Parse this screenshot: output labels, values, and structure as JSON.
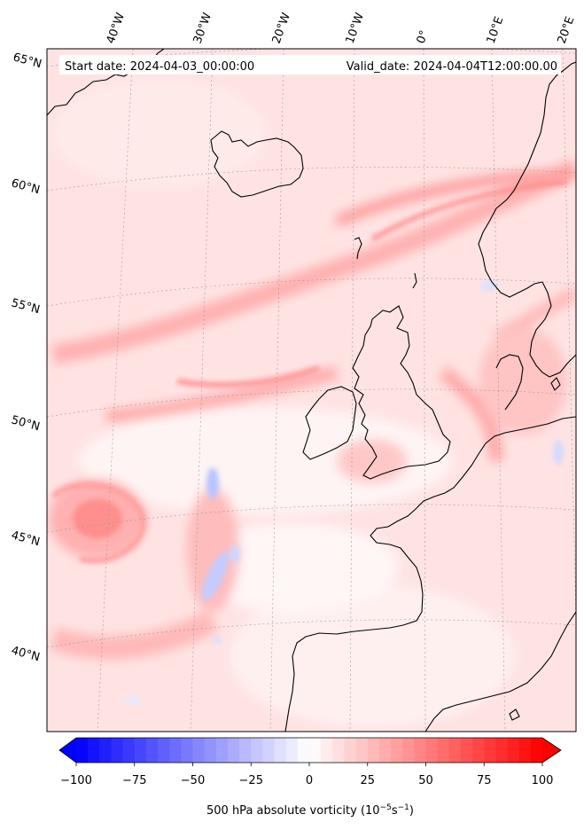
{
  "header": {
    "start_date": "Start date: 2024-04-03_00:00:00",
    "valid_date": "Valid_date: 2024-04-04T12:00:00.00"
  },
  "map": {
    "longitude_labels": [
      "40°W",
      "30°W",
      "20°W",
      "10°W",
      "0°",
      "10°E",
      "20°E"
    ],
    "latitude_labels": [
      "65°N",
      "60°N",
      "55°N",
      "50°N",
      "45°N",
      "40°N"
    ],
    "field": "500 hPa absolute vorticity",
    "colormap": "bwr",
    "colors": {
      "negative": "#0000ff",
      "zero": "#ffffff",
      "positive": "#ff0000"
    }
  },
  "colorbar": {
    "ticks": [
      "−100",
      "−75",
      "−50",
      "−25",
      "0",
      "25",
      "50",
      "75",
      "100"
    ],
    "vmin": -100,
    "vmax": 100,
    "label_main": "500 hPa absolute vorticity (10",
    "label_exp1": "−5",
    "label_mid": "s",
    "label_exp2": "−1",
    "label_end": ")"
  }
}
